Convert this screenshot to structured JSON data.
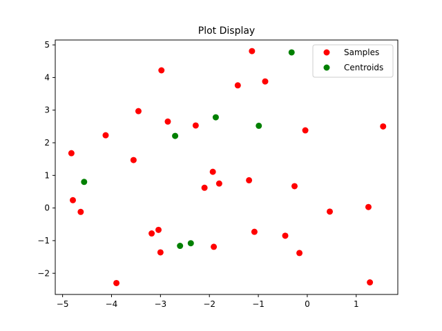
{
  "chart_data": {
    "type": "scatter",
    "title": "Plot Display",
    "xlabel": "",
    "ylabel": "",
    "xlim": [
      -5.15,
      1.85
    ],
    "ylim": [
      -2.65,
      5.15
    ],
    "xticks": [
      -5,
      -4,
      -3,
      -2,
      -1,
      0,
      1
    ],
    "yticks": [
      -2,
      -1,
      0,
      1,
      2,
      3,
      4,
      5
    ],
    "xtick_labels": [
      "−5",
      "−4",
      "−3",
      "−2",
      "−1",
      "0",
      "1"
    ],
    "ytick_labels": [
      "−2",
      "−1",
      "0",
      "1",
      "2",
      "3",
      "4",
      "5"
    ],
    "grid": false,
    "legend_position": "top-right",
    "series": [
      {
        "name": "Samples",
        "color": "#ff0000",
        "points": [
          [
            -1.13,
            4.81
          ],
          [
            -2.98,
            4.22
          ],
          [
            -1.42,
            3.76
          ],
          [
            -0.86,
            3.88
          ],
          [
            -3.45,
            2.97
          ],
          [
            -2.85,
            2.65
          ],
          [
            -2.28,
            2.53
          ],
          [
            -4.12,
            2.23
          ],
          [
            -0.04,
            2.38
          ],
          [
            1.55,
            2.5
          ],
          [
            -4.82,
            1.68
          ],
          [
            -3.55,
            1.47
          ],
          [
            -1.93,
            1.11
          ],
          [
            -2.1,
            0.62
          ],
          [
            -1.8,
            0.75
          ],
          [
            -1.19,
            0.85
          ],
          [
            -0.26,
            0.67
          ],
          [
            -4.79,
            0.24
          ],
          [
            -4.63,
            -0.12
          ],
          [
            0.46,
            -0.11
          ],
          [
            1.25,
            0.03
          ],
          [
            -3.04,
            -0.67
          ],
          [
            -3.18,
            -0.78
          ],
          [
            -1.08,
            -0.73
          ],
          [
            -0.45,
            -0.85
          ],
          [
            -3.0,
            -1.36
          ],
          [
            -1.91,
            -1.19
          ],
          [
            -0.16,
            -1.38
          ],
          [
            -3.9,
            -2.3
          ],
          [
            1.28,
            -2.28
          ]
        ]
      },
      {
        "name": "Centroids",
        "color": "#008000",
        "points": [
          [
            -0.32,
            4.77
          ],
          [
            -1.87,
            2.78
          ],
          [
            -0.99,
            2.52
          ],
          [
            -2.7,
            2.21
          ],
          [
            -4.56,
            0.8
          ],
          [
            -2.38,
            -1.08
          ],
          [
            -2.6,
            -1.16
          ]
        ]
      }
    ]
  }
}
